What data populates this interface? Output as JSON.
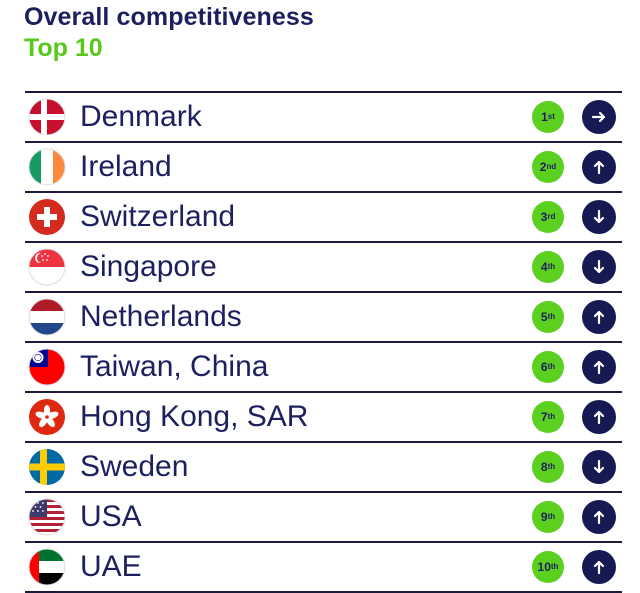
{
  "header": {
    "title": "Overall competitiveness",
    "subtitle": "Top 10"
  },
  "rows": [
    {
      "country": "Denmark",
      "rank_num": "1",
      "rank_suffix": "st",
      "movement": "right",
      "flag": "denmark-flag-icon",
      "arrow_icon": "arrow-right-icon"
    },
    {
      "country": "Ireland",
      "rank_num": "2",
      "rank_suffix": "nd",
      "movement": "up",
      "flag": "ireland-flag-icon",
      "arrow_icon": "arrow-up-icon"
    },
    {
      "country": "Switzerland",
      "rank_num": "3",
      "rank_suffix": "rd",
      "movement": "down",
      "flag": "switzerland-flag-icon",
      "arrow_icon": "arrow-down-icon"
    },
    {
      "country": "Singapore",
      "rank_num": "4",
      "rank_suffix": "th",
      "movement": "down",
      "flag": "singapore-flag-icon",
      "arrow_icon": "arrow-down-icon"
    },
    {
      "country": "Netherlands",
      "rank_num": "5",
      "rank_suffix": "th",
      "movement": "up",
      "flag": "netherlands-flag-icon",
      "arrow_icon": "arrow-up-icon"
    },
    {
      "country": "Taiwan, China",
      "rank_num": "6",
      "rank_suffix": "th",
      "movement": "up",
      "flag": "taiwan-flag-icon",
      "arrow_icon": "arrow-up-icon"
    },
    {
      "country": "Hong Kong, SAR",
      "rank_num": "7",
      "rank_suffix": "th",
      "movement": "up",
      "flag": "hong-kong-flag-icon",
      "arrow_icon": "arrow-up-icon"
    },
    {
      "country": "Sweden",
      "rank_num": "8",
      "rank_suffix": "th",
      "movement": "down",
      "flag": "sweden-flag-icon",
      "arrow_icon": "arrow-down-icon"
    },
    {
      "country": "USA",
      "rank_num": "9",
      "rank_suffix": "th",
      "movement": "up",
      "flag": "usa-flag-icon",
      "arrow_icon": "arrow-up-icon"
    },
    {
      "country": "UAE",
      "rank_num": "10",
      "rank_suffix": "th",
      "movement": "up",
      "flag": "uae-flag-icon",
      "arrow_icon": "arrow-up-icon"
    }
  ],
  "colors": {
    "title": "#1d1f5e",
    "subtitle": "#58c81a",
    "rank_badge": "#5cd01f",
    "arrow_badge": "#161a52",
    "rule": "#1b1c3a"
  }
}
